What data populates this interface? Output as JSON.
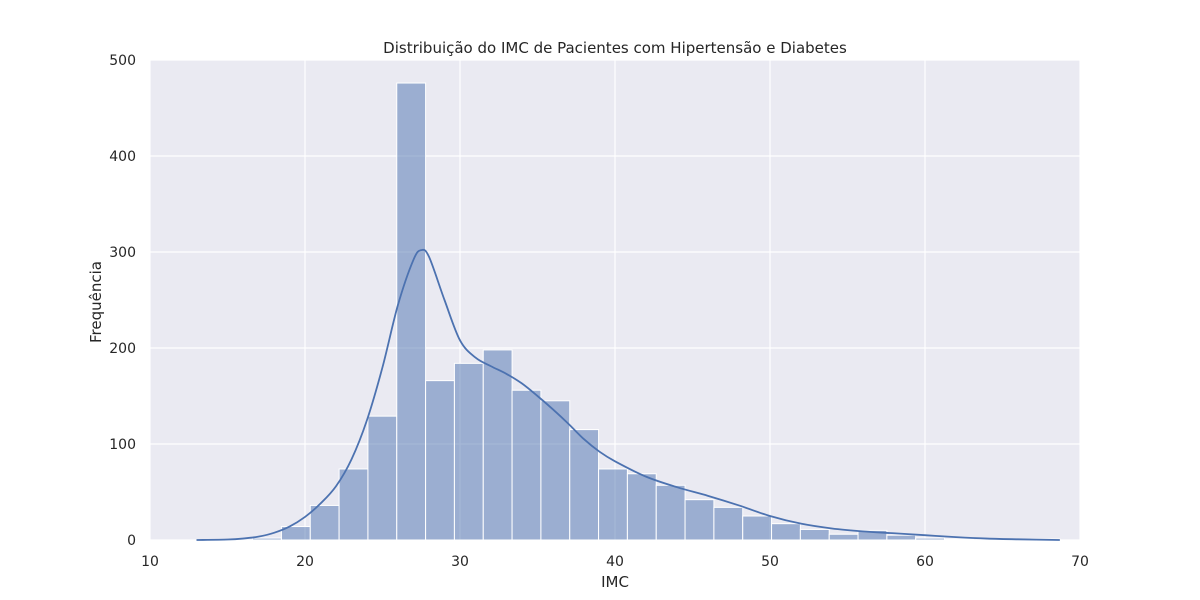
{
  "chart_data": {
    "type": "bar",
    "title": "Distribuição do IMC de Pacientes com Hipertensão e Diabetes",
    "xlabel": "IMC",
    "ylabel": "Frequência",
    "xlim": [
      10,
      70
    ],
    "ylim": [
      0,
      500
    ],
    "xticks": [
      10,
      20,
      30,
      40,
      50,
      60,
      70
    ],
    "yticks": [
      0,
      100,
      200,
      300,
      400,
      500
    ],
    "grid": true,
    "legend": "none",
    "colors": {
      "plot_bg": "#eaeaf2",
      "grid": "#ffffff",
      "bar_fill": "#4c72b0",
      "bar_opacity": 0.5,
      "bar_edge": "#ffffff",
      "kde_line": "#4c72b0"
    },
    "bin_edges": [
      12.9,
      14.76,
      16.62,
      18.48,
      20.34,
      22.2,
      24.06,
      25.92,
      27.78,
      29.64,
      31.5,
      33.36,
      35.22,
      37.08,
      38.94,
      40.8,
      42.66,
      44.52,
      46.38,
      48.24,
      50.1,
      51.96,
      53.82,
      55.68,
      57.54,
      59.4,
      61.26,
      63.12,
      64.98,
      66.84,
      68.7
    ],
    "values": [
      0,
      0,
      2,
      14,
      36,
      74,
      129,
      476,
      166,
      184,
      198,
      156,
      145,
      115,
      74,
      69,
      57,
      42,
      34,
      25,
      17,
      11,
      6,
      10,
      5,
      2,
      1,
      0,
      0,
      1
    ],
    "kde": {
      "x": [
        13,
        15,
        16,
        17,
        18,
        19,
        20,
        21,
        22,
        23,
        24,
        25,
        26,
        27,
        27.5,
        28,
        29,
        30,
        31,
        32,
        33,
        34,
        35,
        36,
        37,
        38,
        39,
        40,
        42,
        44,
        46,
        48,
        50,
        52,
        54,
        56,
        58,
        60,
        62,
        64,
        66,
        68.7
      ],
      "y": [
        0,
        0.5,
        1.5,
        3.5,
        7.5,
        14,
        24,
        38,
        56,
        84,
        125,
        180,
        245,
        292,
        302,
        295,
        250,
        208,
        190,
        181,
        173,
        163,
        150,
        136,
        121,
        105,
        92,
        82,
        66,
        55,
        46,
        36,
        25,
        17,
        12,
        9,
        7,
        5,
        3,
        1.5,
        0.7,
        0
      ]
    }
  }
}
